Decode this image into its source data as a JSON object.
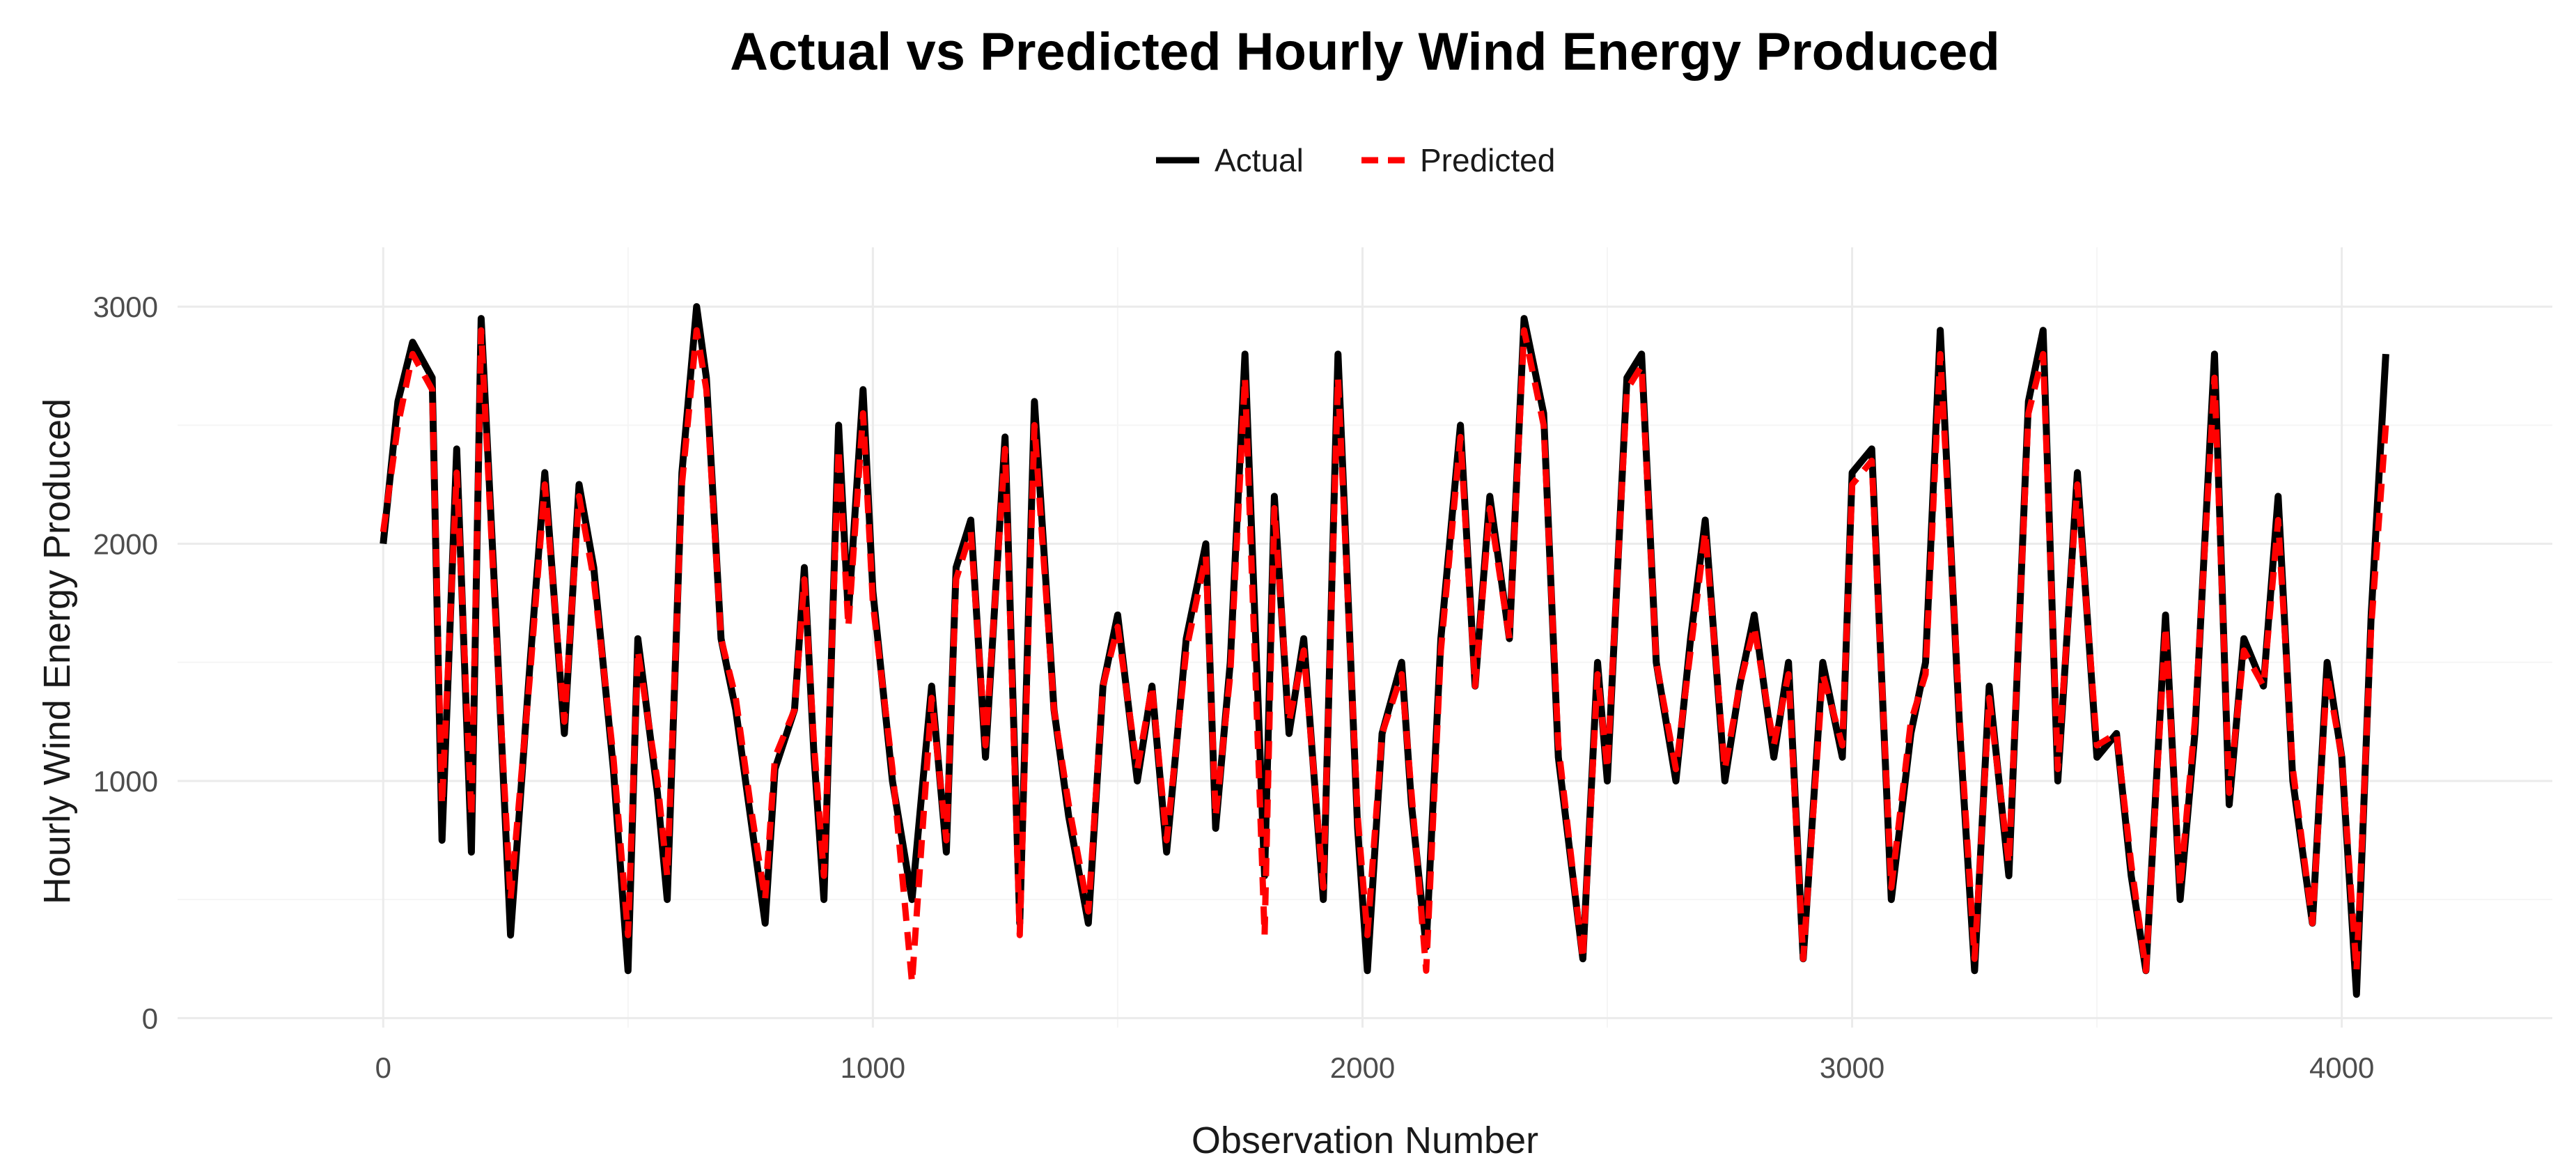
{
  "chart_data": {
    "type": "line",
    "title": "Actual vs Predicted Hourly Wind Energy Produced",
    "xlabel": "Observation Number",
    "ylabel": "Hourly Wind Energy Produced",
    "xlim": [
      -420,
      4430
    ],
    "ylim": [
      -40,
      3250
    ],
    "x_ticks": [
      0,
      1000,
      2000,
      3000,
      4000
    ],
    "y_ticks": [
      0,
      1000,
      2000,
      3000
    ],
    "x_tick_labels": [
      "0",
      "1000",
      "2000",
      "3000",
      "4000"
    ],
    "y_tick_labels": [
      "0",
      "1000",
      "2000",
      "3000"
    ],
    "grid": true,
    "legend_position": "top",
    "colors": {
      "actual": "#000000",
      "predicted": "#ff0000",
      "grid_major": "#ebebeb",
      "grid_minor": "#f5f5f5"
    },
    "series": [
      {
        "name": "Actual",
        "style": "solid",
        "x": [
          0,
          30,
          60,
          100,
          120,
          150,
          180,
          200,
          230,
          260,
          300,
          330,
          370,
          400,
          430,
          470,
          500,
          520,
          560,
          580,
          610,
          640,
          660,
          690,
          720,
          750,
          780,
          800,
          840,
          860,
          880,
          900,
          930,
          950,
          980,
          1000,
          1040,
          1080,
          1120,
          1150,
          1170,
          1200,
          1230,
          1270,
          1300,
          1330,
          1370,
          1400,
          1440,
          1470,
          1500,
          1540,
          1570,
          1600,
          1640,
          1680,
          1700,
          1730,
          1760,
          1800,
          1820,
          1850,
          1880,
          1920,
          1950,
          1990,
          2010,
          2040,
          2080,
          2100,
          2130,
          2160,
          2200,
          2230,
          2260,
          2300,
          2330,
          2370,
          2400,
          2450,
          2480,
          2500,
          2540,
          2570,
          2600,
          2640,
          2670,
          2700,
          2740,
          2770,
          2800,
          2840,
          2870,
          2900,
          2940,
          2980,
          3000,
          3040,
          3080,
          3120,
          3150,
          3180,
          3220,
          3250,
          3280,
          3320,
          3360,
          3390,
          3420,
          3460,
          3500,
          3540,
          3570,
          3600,
          3640,
          3670,
          3700,
          3740,
          3770,
          3800,
          3840,
          3870,
          3900,
          3940,
          3970,
          4000,
          4030,
          4060,
          4090
        ],
        "values": [
          2000,
          2600,
          2850,
          2700,
          750,
          2400,
          700,
          2950,
          1700,
          350,
          1500,
          2300,
          1200,
          2250,
          1900,
          1050,
          200,
          1600,
          950,
          500,
          2300,
          3000,
          2700,
          1600,
          1300,
          850,
          400,
          1050,
          1300,
          1900,
          1100,
          500,
          2500,
          1700,
          2650,
          1800,
          1000,
          500,
          1400,
          700,
          1900,
          2100,
          1100,
          2450,
          400,
          2600,
          1300,
          850,
          400,
          1400,
          1700,
          1000,
          1400,
          700,
          1600,
          2000,
          800,
          1500,
          2800,
          600,
          2200,
          1200,
          1600,
          500,
          2800,
          800,
          200,
          1200,
          1500,
          900,
          300,
          1600,
          2500,
          1400,
          2200,
          1600,
          2950,
          2550,
          1100,
          250,
          1500,
          1000,
          2700,
          2800,
          1500,
          1000,
          1600,
          2100,
          1000,
          1400,
          1700,
          1100,
          1500,
          250,
          1500,
          1100,
          2300,
          2400,
          500,
          1200,
          1500,
          2900,
          1200,
          200,
          1400,
          600,
          2600,
          2900,
          1000,
          2300,
          1100,
          1200,
          600,
          200,
          1700,
          500,
          1200,
          2800,
          900,
          1600,
          1400,
          2200,
          1000,
          400,
          1500,
          1100,
          100,
          1700,
          2800
        ]
      },
      {
        "name": "Predicted",
        "style": "dashed",
        "x": [
          0,
          30,
          60,
          100,
          120,
          150,
          180,
          200,
          230,
          260,
          300,
          330,
          370,
          400,
          430,
          470,
          500,
          520,
          560,
          580,
          610,
          640,
          660,
          690,
          720,
          750,
          780,
          800,
          840,
          860,
          880,
          900,
          930,
          950,
          980,
          1000,
          1040,
          1080,
          1120,
          1150,
          1170,
          1200,
          1230,
          1270,
          1300,
          1330,
          1370,
          1400,
          1440,
          1470,
          1500,
          1540,
          1570,
          1600,
          1640,
          1680,
          1700,
          1730,
          1760,
          1800,
          1820,
          1850,
          1880,
          1920,
          1950,
          1990,
          2010,
          2040,
          2080,
          2100,
          2130,
          2160,
          2200,
          2230,
          2260,
          2300,
          2330,
          2370,
          2400,
          2450,
          2480,
          2500,
          2540,
          2570,
          2600,
          2640,
          2670,
          2700,
          2740,
          2770,
          2800,
          2840,
          2870,
          2900,
          2940,
          2980,
          3000,
          3040,
          3080,
          3120,
          3150,
          3180,
          3220,
          3250,
          3280,
          3320,
          3360,
          3390,
          3420,
          3460,
          3500,
          3540,
          3570,
          3600,
          3640,
          3670,
          3700,
          3740,
          3770,
          3800,
          3840,
          3870,
          3900,
          3940,
          3970,
          4000,
          4030,
          4060,
          4090
        ],
        "values": [
          2050,
          2500,
          2800,
          2650,
          900,
          2300,
          850,
          2900,
          1650,
          500,
          1450,
          2250,
          1250,
          2200,
          1850,
          1100,
          350,
          1550,
          1000,
          600,
          2250,
          2900,
          2650,
          1600,
          1350,
          900,
          500,
          1100,
          1300,
          1850,
          1150,
          600,
          2400,
          1650,
          2550,
          1750,
          1050,
          150,
          1350,
          750,
          1850,
          2050,
          1150,
          2400,
          350,
          2500,
          1300,
          900,
          450,
          1400,
          1650,
          1050,
          1400,
          750,
          1550,
          1950,
          850,
          1450,
          2700,
          350,
          2150,
          1250,
          1550,
          550,
          2700,
          850,
          350,
          1200,
          1450,
          950,
          200,
          1550,
          2450,
          1400,
          2150,
          1600,
          2900,
          2500,
          1150,
          250,
          1450,
          1050,
          2650,
          2750,
          1500,
          1050,
          1550,
          2050,
          1050,
          1400,
          1650,
          1150,
          1450,
          250,
          1450,
          1150,
          2250,
          2350,
          550,
          1250,
          1450,
          2800,
          1250,
          250,
          1350,
          650,
          2550,
          2800,
          1050,
          2250,
          1150,
          1200,
          650,
          200,
          1650,
          550,
          1250,
          2700,
          950,
          1550,
          1400,
          2100,
          1050,
          400,
          1450,
          1100,
          200,
          1650,
          2500
        ]
      }
    ]
  }
}
